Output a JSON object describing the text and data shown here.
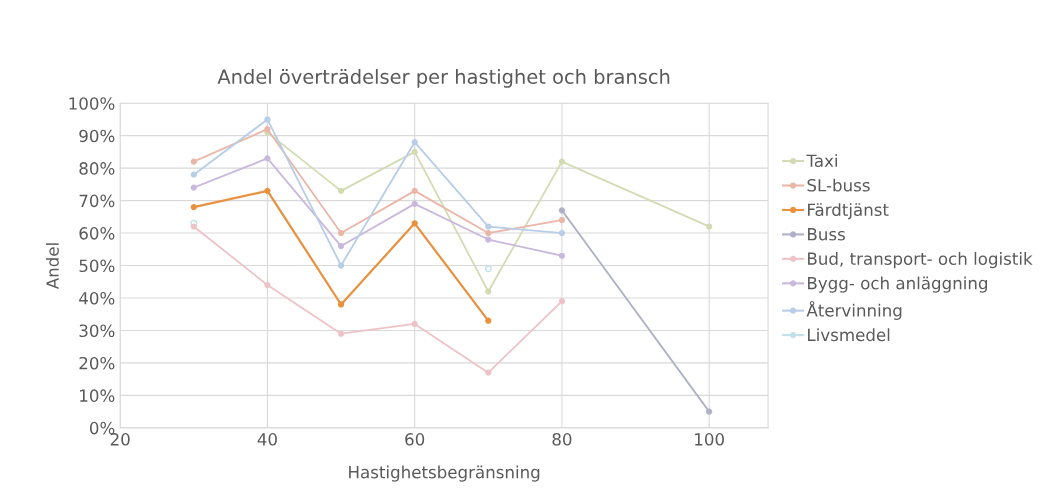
{
  "chart_data": {
    "type": "line",
    "title": "Andel överträdelser per hastighet och bransch",
    "xlabel": "Hastighetsbegränsning",
    "ylabel": "Andel",
    "x": [
      30,
      40,
      50,
      60,
      70,
      80,
      100
    ],
    "xlim": [
      20,
      108
    ],
    "xticks": [
      20,
      40,
      60,
      80,
      100
    ],
    "ylim": [
      0,
      100
    ],
    "yticks": [
      {
        "value": 0,
        "label": "0%"
      },
      {
        "value": 10,
        "label": "10%"
      },
      {
        "value": 20,
        "label": "20%"
      },
      {
        "value": 30,
        "label": "30%"
      },
      {
        "value": 40,
        "label": "40%"
      },
      {
        "value": 50,
        "label": "50%"
      },
      {
        "value": 60,
        "label": "60%"
      },
      {
        "value": 70,
        "label": "70%"
      },
      {
        "value": 80,
        "label": "80%"
      },
      {
        "value": 90,
        "label": "90%"
      },
      {
        "value": 100,
        "label": "100%"
      }
    ],
    "grid": true,
    "legend": "right",
    "marker": "circle",
    "series": [
      {
        "name": "Taxi",
        "color": "#d3dbb3",
        "values": [
          null,
          91,
          73,
          85,
          42,
          82,
          62
        ]
      },
      {
        "name": "SL-buss",
        "color": "#e9b6a8",
        "values": [
          82,
          92,
          60,
          73,
          60,
          64,
          null
        ]
      },
      {
        "name": "Färdtjänst",
        "color": "#e8913f",
        "values": [
          68,
          73,
          38,
          63,
          33,
          null,
          null
        ]
      },
      {
        "name": "Buss",
        "color": "#aeb1c8",
        "values": [
          null,
          null,
          null,
          null,
          null,
          67,
          5
        ]
      },
      {
        "name": "Bud, transport- och logistik",
        "color": "#eec3c8",
        "values": [
          62,
          44,
          29,
          32,
          17,
          39,
          null
        ]
      },
      {
        "name": "Bygg- och anläggning",
        "color": "#c9b8dc",
        "values": [
          74,
          83,
          56,
          69,
          58,
          53,
          null
        ]
      },
      {
        "name": "Återvinning",
        "color": "#b8cde8",
        "values": [
          78,
          95,
          50,
          88,
          62,
          60,
          null
        ]
      },
      {
        "name": "Livsmedel",
        "type": "scatter",
        "color": "#c2e0ea",
        "values": [
          63,
          null,
          null,
          null,
          49,
          null,
          null
        ]
      }
    ]
  }
}
